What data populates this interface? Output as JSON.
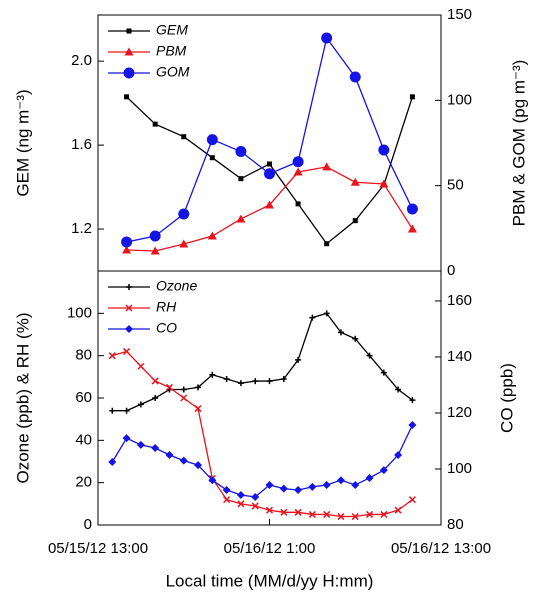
{
  "chart_data": [
    {
      "type": "line",
      "x": [
        "05/15/12 15:00",
        "05/15/12 17:00",
        "05/15/12 19:00",
        "05/15/12 21:00",
        "05/15/12 23:00",
        "05/16/12 1:00",
        "05/16/12 3:00",
        "05/16/12 5:00",
        "05/16/12 7:00",
        "05/16/12 9:00",
        "05/16/12 11:00"
      ],
      "xlim": [
        "05/15/12 13:00",
        "05/16/12 13:00"
      ],
      "ylabel": "GEM (ng m⁻³)",
      "y2label": "PBM & GOM (pg m⁻³)",
      "ylim": [
        1.0,
        2.22
      ],
      "yticks": [
        1.2,
        1.6,
        {
          "value": 2,
          "label": "2.0"
        }
      ],
      "y2lim": [
        0,
        150
      ],
      "y2ticks": [
        0,
        50,
        100,
        150
      ],
      "series": [
        {
          "name": "GEM",
          "color": "#000000",
          "marker": "square",
          "values": [
            1.83,
            1.7,
            1.64,
            1.54,
            1.44,
            1.51,
            1.32,
            1.13,
            1.24,
            1.41,
            1.83
          ]
        },
        {
          "name": "PBM",
          "color": "#e8141c",
          "marker": "triangle",
          "axis": "y2",
          "values": [
            12.3,
            11.7,
            15.8,
            20.5,
            30.5,
            38.7,
            58,
            61,
            52,
            51,
            24.6
          ]
        },
        {
          "name": "GOM",
          "color": "#1414e6",
          "marker": "circle",
          "axis": "y2",
          "values": [
            17,
            20.5,
            33.4,
            77,
            70,
            57,
            64,
            136.5,
            113.7,
            70.9,
            36.3
          ]
        }
      ]
    },
    {
      "type": "line",
      "x": [
        "05/15/12 14:00",
        "05/15/12 15:00",
        "05/15/12 16:00",
        "05/15/12 17:00",
        "05/15/12 18:00",
        "05/15/12 19:00",
        "05/15/12 20:00",
        "05/15/12 21:00",
        "05/15/12 22:00",
        "05/15/12 23:00",
        "05/16/12 0:00",
        "05/16/12 1:00",
        "05/16/12 2:00",
        "05/16/12 3:00",
        "05/16/12 4:00",
        "05/16/12 5:00",
        "05/16/12 6:00",
        "05/16/12 7:00",
        "05/16/12 8:00",
        "05/16/12 9:00",
        "05/16/12 10:00",
        "05/16/12 11:00"
      ],
      "xlim": [
        "05/15/12 13:00",
        "05/16/12 13:00"
      ],
      "xticks": [
        "05/15/12 13:00",
        "05/16/12 1:00",
        "05/16/12 13:00"
      ],
      "xlabel": "Local time (MM/d/yy H:mm)",
      "ylabel": "Ozone (ppb) & RH (%)",
      "y2label": "CO (ppb)",
      "ylim": [
        0,
        120
      ],
      "yticks": [
        0,
        20,
        40,
        60,
        80,
        100
      ],
      "y2lim": [
        80,
        170.7
      ],
      "y2ticks": [
        80,
        100,
        120,
        140,
        160
      ],
      "series": [
        {
          "name": "Ozone",
          "color": "#000000",
          "marker": "star",
          "values": [
            54,
            54,
            57,
            60,
            64,
            64,
            65,
            71,
            69,
            67,
            68,
            68,
            69,
            78,
            98,
            100,
            91,
            88,
            80,
            72,
            64,
            59
          ]
        },
        {
          "name": "RH",
          "color": "#e8141c",
          "marker": "x",
          "values": [
            80,
            82,
            75,
            68,
            65,
            60,
            55,
            22,
            12,
            10,
            9,
            7,
            6,
            6,
            5,
            5,
            4,
            4,
            5,
            5,
            7,
            12
          ]
        },
        {
          "name": "CO",
          "color": "#1414e6",
          "marker": "diamond",
          "axis": "y2",
          "values": [
            102.5,
            111,
            108.6,
            107.5,
            105,
            103,
            101.4,
            96,
            92.5,
            90.7,
            90,
            94.3,
            93,
            92.5,
            93.6,
            94.3,
            96,
            94.3,
            96.8,
            99.6,
            105,
            115.7
          ]
        }
      ]
    }
  ]
}
